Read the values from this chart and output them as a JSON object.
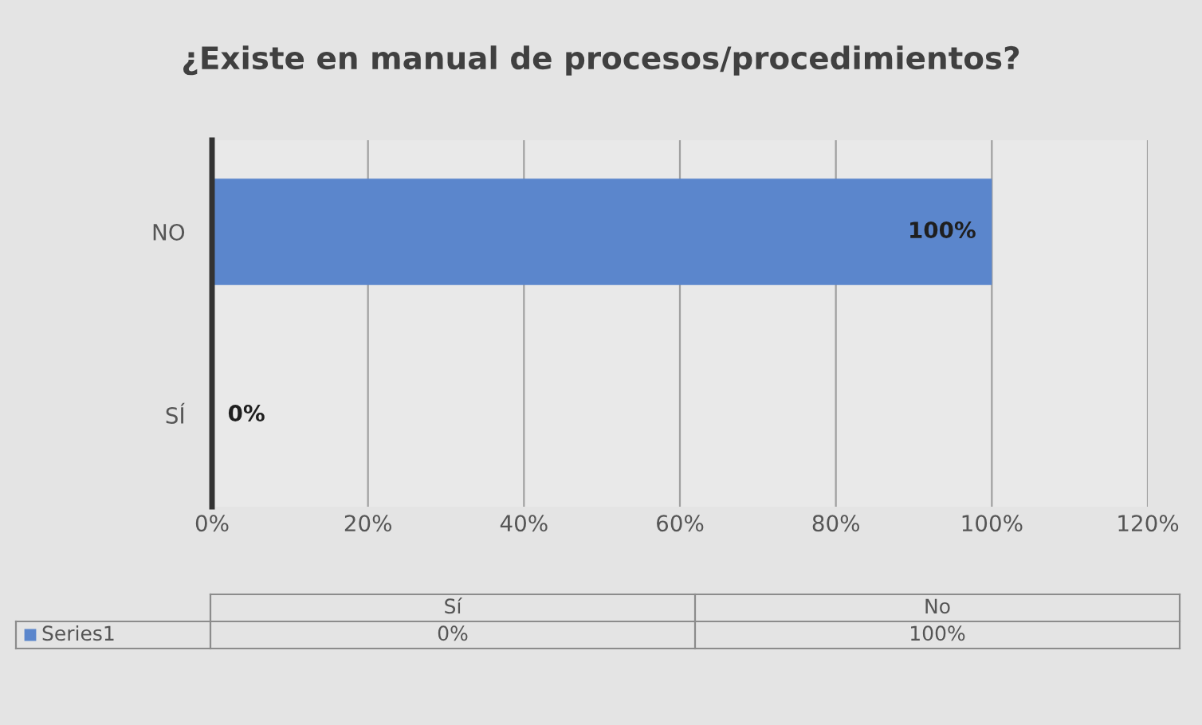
{
  "chart_data": {
    "type": "bar",
    "orientation": "horizontal",
    "title": "¿Existe en manual de procesos/procedimientos?",
    "categories": [
      "NO",
      "SÍ"
    ],
    "series": [
      {
        "name": "Series1",
        "color": "#5b86cc",
        "values": [
          100,
          0
        ],
        "value_labels": [
          "100%",
          "0%"
        ]
      }
    ],
    "xlim": [
      0,
      120
    ],
    "xticks": [
      {
        "value": 0,
        "label": "0%"
      },
      {
        "value": 20,
        "label": "20%"
      },
      {
        "value": 40,
        "label": "40%"
      },
      {
        "value": 60,
        "label": "60%"
      },
      {
        "value": 80,
        "label": "80%"
      },
      {
        "value": 100,
        "label": "100%"
      },
      {
        "value": 120,
        "label": "120%"
      }
    ],
    "grid": "x",
    "annotations": [
      "Sí",
      "No"
    ]
  }
}
